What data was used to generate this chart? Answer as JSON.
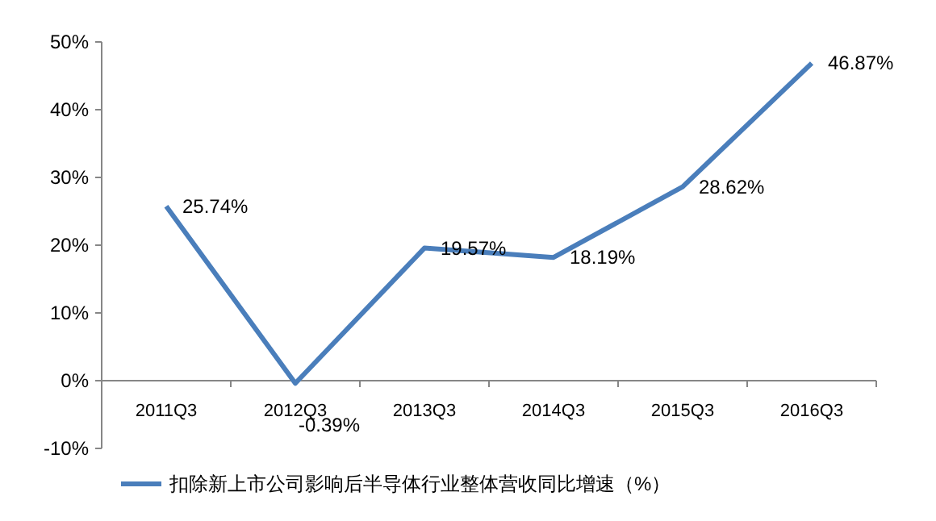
{
  "chart_data": {
    "type": "line",
    "categories": [
      "2011Q3",
      "2012Q3",
      "2013Q3",
      "2014Q3",
      "2015Q3",
      "2016Q3"
    ],
    "series": [
      {
        "name": "扣除新上市公司影响后半导体行业整体营收同比增速（%）",
        "color": "#4a7ebb",
        "values": [
          25.74,
          -0.39,
          19.57,
          18.19,
          28.62,
          46.87
        ],
        "value_labels": [
          "25.74%",
          "-0.39%",
          "19.57%",
          "18.19%",
          "28.62%",
          "46.87%"
        ]
      }
    ],
    "ylim": [
      -10,
      50
    ],
    "yticks": [
      {
        "value": -10,
        "label": "-10%"
      },
      {
        "value": 0,
        "label": "0%"
      },
      {
        "value": 10,
        "label": "10%"
      },
      {
        "value": 20,
        "label": "20%"
      },
      {
        "value": 30,
        "label": "30%"
      },
      {
        "value": 40,
        "label": "40%"
      },
      {
        "value": 50,
        "label": "50%"
      }
    ],
    "grid": false,
    "legend": "bottom",
    "marker": "none",
    "line_style": "solid"
  }
}
